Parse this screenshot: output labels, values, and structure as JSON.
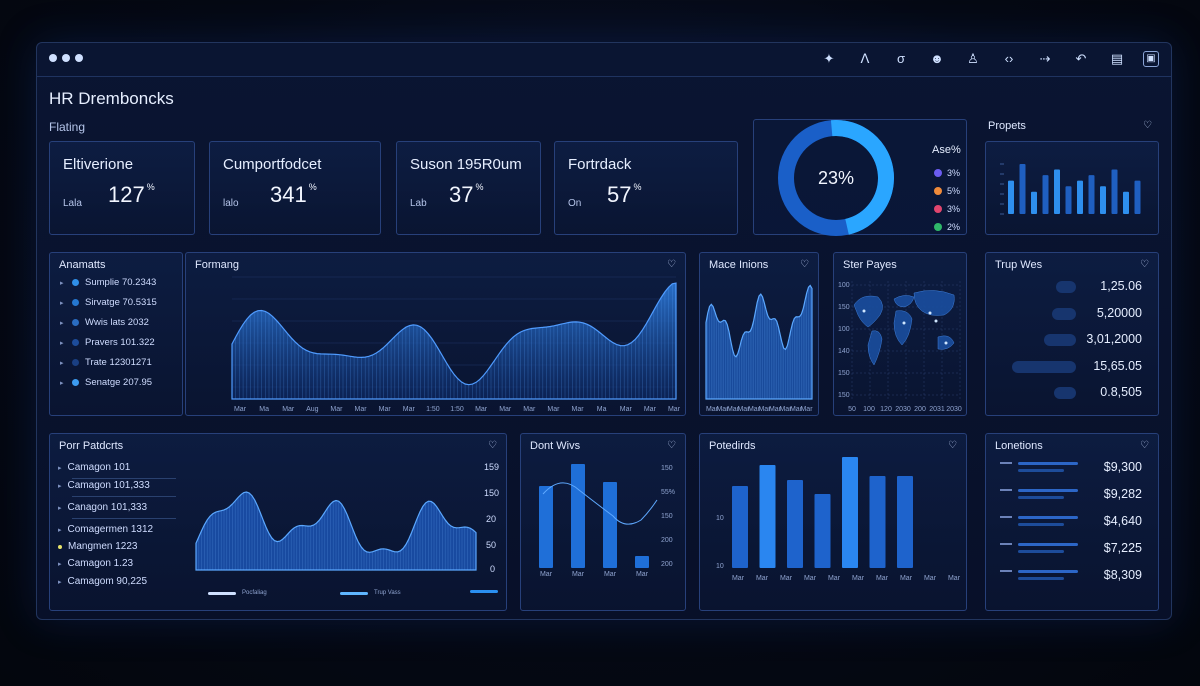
{
  "app": {
    "title": "HR Dremboncks",
    "section": "Flating"
  },
  "toolbar": {
    "icons": [
      "star-icon",
      "tool-a-icon",
      "tool-b-icon",
      "user-icon",
      "person-icon",
      "code-icon",
      "arrows-icon",
      "pin-icon",
      "file-icon",
      "panel-icon"
    ]
  },
  "kpis": [
    {
      "title": "Eltiverione",
      "sub": "Lala",
      "value": "127",
      "unit": "%"
    },
    {
      "title": "Cumportfodcet",
      "sub": "lalo",
      "value": "341",
      "unit": "%"
    },
    {
      "title": "Suson 195R0um",
      "sub": "Lab",
      "value": "37",
      "unit": "%"
    },
    {
      "title": "Fortrdack",
      "sub": "On",
      "value": "57",
      "unit": "%"
    }
  ],
  "donut": {
    "center": "23%",
    "legend_title": "Ase%",
    "legend": [
      {
        "label": "3%",
        "color": "#6b5cf0"
      },
      {
        "label": "5%",
        "color": "#ef8a3a"
      },
      {
        "label": "3%",
        "color": "#e0456e"
      },
      {
        "label": "2%",
        "color": "#2fb86a"
      }
    ]
  },
  "propets": {
    "title": "Propets",
    "values": [
      6,
      9,
      4,
      7,
      8,
      5,
      6,
      7,
      5,
      8,
      4,
      6
    ]
  },
  "anamatts": {
    "title": "Anamatts",
    "items": [
      {
        "label": "Sumplie 70.2343"
      },
      {
        "label": "Sirvatge 70.5315"
      },
      {
        "label": "Wwis lats 2032"
      },
      {
        "label": "Pravers 101.322"
      },
      {
        "label": "Trate 12301271"
      },
      {
        "label": "Senatge 207.95"
      }
    ]
  },
  "formang": {
    "title": "Formang",
    "xlabels": [
      "Mar",
      "Ma",
      "Mar",
      "Aug",
      "Mar",
      "Mar",
      "Mar",
      "Mar",
      "1:50",
      "1:50",
      "Mar",
      "Mar",
      "Mar",
      "Mar",
      "Mar",
      "Ma",
      "Mar",
      "Mar",
      "Mar"
    ]
  },
  "mace": {
    "title": "Mace Inions",
    "xlabels": [
      "Mar",
      "Mar",
      "Mar",
      "Mar",
      "Mar",
      "Mar",
      "Mar",
      "Mar",
      "Mar",
      "Mar"
    ]
  },
  "ster": {
    "title": "Ster Payes",
    "ylabels": [
      "100",
      "150",
      "100",
      "140",
      "150",
      "150"
    ],
    "xlabels": [
      "50",
      "100",
      "120",
      "2030",
      "200",
      "2031",
      "2030"
    ]
  },
  "trup": {
    "title": "Trup Wes",
    "rows": [
      {
        "value": "1,25.06",
        "bar": 0.25
      },
      {
        "value": "5,20000",
        "bar": 0.3
      },
      {
        "value": "3,01,2000",
        "bar": 0.4
      },
      {
        "value": "15,65.05",
        "bar": 0.8
      },
      {
        "value": "0.8,505",
        "bar": 0.28
      }
    ]
  },
  "port": {
    "title": "Porr Patdcrts",
    "items": [
      {
        "label": "Camagon 101"
      },
      {
        "label": "Camagon 101,333"
      },
      {
        "label": "Canagon 101,333"
      },
      {
        "label": "Comagermen 1312"
      },
      {
        "label": "Mangmen 1223"
      },
      {
        "label": "Camagon 1.23"
      },
      {
        "label": "Camagom 90,225"
      }
    ],
    "yaxis": [
      "159",
      "150",
      "20",
      "50",
      "0"
    ],
    "legend": [
      "Pocfaliag",
      "Trup Vass",
      ""
    ]
  },
  "dont": {
    "title": "Dont Wivs",
    "yaxis": [
      "150",
      "55%",
      "150",
      "200",
      "200"
    ],
    "xlabels": [
      "Mar",
      "Mar",
      "Mar",
      "Mar"
    ]
  },
  "potedirds": {
    "title": "Potedirds",
    "xlabels": [
      "Mar",
      "Mar",
      "Mar",
      "Mar",
      "Mar",
      "Mar",
      "Mar",
      "Mar",
      "Mar",
      "Mar"
    ]
  },
  "lonetions": {
    "title": "Lonetions",
    "rows": [
      {
        "value": "$9,300"
      },
      {
        "value": "$9,282"
      },
      {
        "value": "$4,640"
      },
      {
        "value": "$7,225"
      },
      {
        "value": "$8,309"
      }
    ]
  }
}
